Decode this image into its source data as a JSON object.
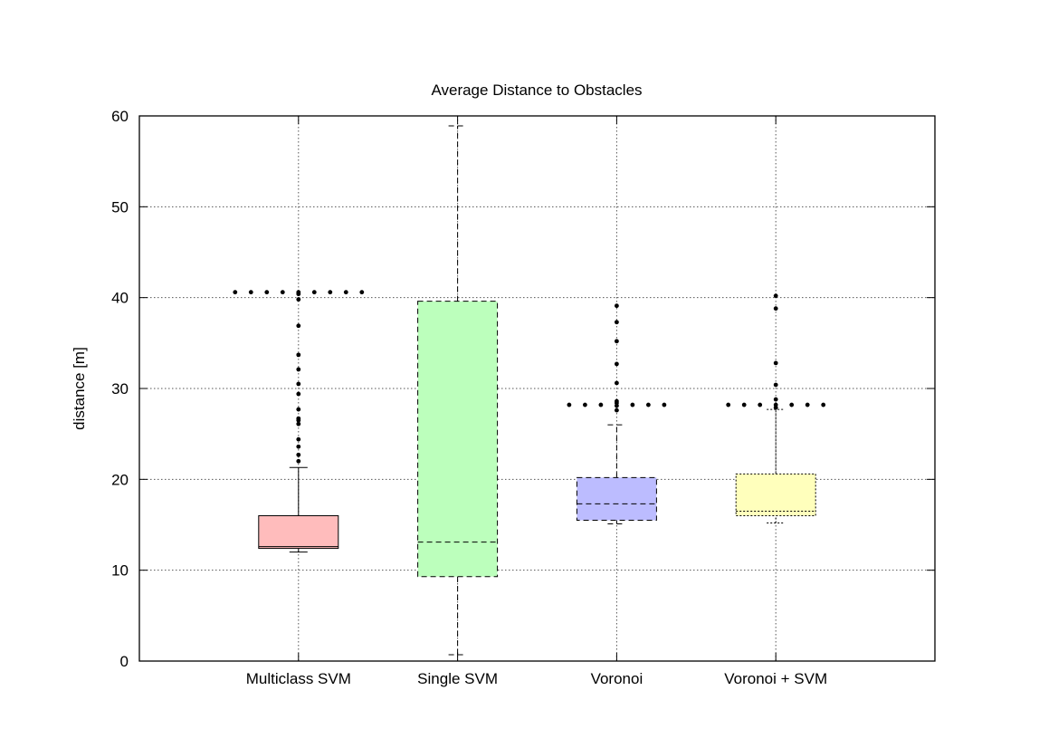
{
  "chart_data": {
    "type": "box",
    "title": "Average Distance to Obstacles",
    "xlabel": "",
    "ylabel": "distance [m]",
    "ylim": [
      0,
      60
    ],
    "yticks": [
      0,
      10,
      20,
      30,
      40,
      50,
      60
    ],
    "grid": true,
    "legend": "none",
    "categories": [
      "Multiclass SVM",
      "Single SVM",
      "Voronoi",
      "Voronoi + SVM"
    ],
    "boxes": [
      {
        "category": "Multiclass SVM",
        "color": "#ffbcbc",
        "whisker_low": 12.0,
        "q1": 12.4,
        "median": 12.6,
        "q3": 16.0,
        "whisker_high": 21.3,
        "whisker_style": "solid",
        "outliers": [
          22.0,
          22.7,
          23.6,
          24.4,
          26.1,
          26.5,
          26.7,
          27.7,
          29.4,
          30.5,
          32.1,
          33.7,
          36.9,
          39.8,
          40.4,
          40.6
        ],
        "spread_level": 40.6,
        "spread_count": 8
      },
      {
        "category": "Single SVM",
        "color": "#bcffbc",
        "whisker_low": 0.7,
        "q1": 9.3,
        "median": 13.1,
        "q3": 39.6,
        "whisker_high": 58.9,
        "whisker_style": "dashed",
        "outliers": [],
        "spread_level": null,
        "spread_count": 0
      },
      {
        "category": "Voronoi",
        "color": "#bcbcff",
        "whisker_low": 15.1,
        "q1": 15.5,
        "median": 17.3,
        "q3": 20.2,
        "whisker_high": 26.0,
        "whisker_style": "dashed",
        "outliers": [
          27.6,
          28.1,
          28.4,
          28.6,
          30.6,
          32.7,
          35.2,
          37.3,
          39.1
        ],
        "spread_level": 28.2,
        "spread_count": 7
      },
      {
        "category": "Voronoi + SVM",
        "color": "#ffffbc",
        "whisker_low": 15.2,
        "q1": 16.0,
        "median": 16.5,
        "q3": 20.6,
        "whisker_high": 27.7,
        "whisker_style": "dotted",
        "outliers": [
          27.9,
          28.2,
          28.8,
          30.4,
          32.8,
          38.8,
          40.2
        ],
        "spread_level": 28.2,
        "spread_count": 7
      }
    ]
  }
}
